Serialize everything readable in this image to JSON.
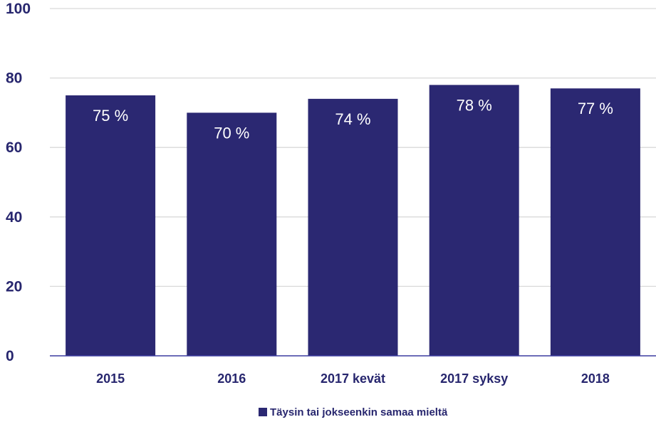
{
  "chart_data": {
    "type": "bar",
    "title": "",
    "xlabel": "",
    "ylabel": "",
    "categories": [
      "2015",
      "2016",
      "2017 kevät",
      "2017 syksy",
      "2018"
    ],
    "series": [
      {
        "name": "Täysin tai jokseenkin samaa mieltä",
        "values": [
          75,
          70,
          74,
          78,
          77
        ],
        "labels": [
          "75 %",
          "70 %",
          "74 %",
          "78 %",
          "77 %"
        ],
        "color": "#2b2872"
      }
    ],
    "ylim": [
      0,
      100
    ],
    "yticks": [
      "0",
      "20",
      "40",
      "60",
      "80",
      "100"
    ],
    "grid": true,
    "legend_position": "bottom-center",
    "gridline_color": "#d9d9d9",
    "axis_color": "#3c3ca0",
    "text_color": "#27266e"
  }
}
